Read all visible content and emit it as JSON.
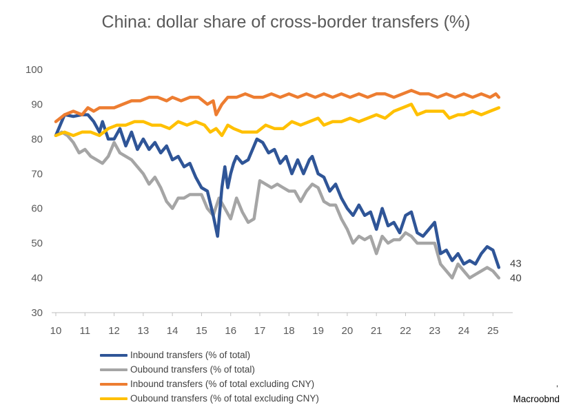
{
  "chart_data": {
    "type": "line",
    "title": "China: dollar share of cross-border transfers (%)",
    "xlabel": "",
    "ylabel": "",
    "xlim": [
      2010,
      2025.3
    ],
    "ylim": [
      30,
      100
    ],
    "yticks": [
      100,
      90,
      80,
      70,
      60,
      50,
      40,
      30
    ],
    "xtick_labels": [
      "10",
      "11",
      "12",
      "13",
      "14",
      "15",
      "16",
      "17",
      "18",
      "19",
      "20",
      "21",
      "22",
      "23",
      "24",
      "25"
    ],
    "end_labels": [
      {
        "series": "Inbound transfers (% of total)",
        "text": "43",
        "value": 43
      },
      {
        "series": "Oubound transfers (% of total)",
        "text": "40",
        "value": 40
      }
    ],
    "series": [
      {
        "name": "Inbound transfers (% of total)",
        "color": "#2F5597",
        "points": [
          [
            2010.0,
            81
          ],
          [
            2010.3,
            87
          ],
          [
            2010.6,
            86.5
          ],
          [
            2010.9,
            87
          ],
          [
            2011.1,
            87
          ],
          [
            2011.3,
            85
          ],
          [
            2011.5,
            82
          ],
          [
            2011.6,
            85
          ],
          [
            2011.8,
            80
          ],
          [
            2012.0,
            80
          ],
          [
            2012.2,
            83
          ],
          [
            2012.4,
            78
          ],
          [
            2012.6,
            82
          ],
          [
            2012.8,
            77
          ],
          [
            2013.0,
            80
          ],
          [
            2013.2,
            77
          ],
          [
            2013.4,
            79
          ],
          [
            2013.6,
            76
          ],
          [
            2013.8,
            78
          ],
          [
            2014.0,
            74
          ],
          [
            2014.2,
            75
          ],
          [
            2014.4,
            72
          ],
          [
            2014.6,
            73
          ],
          [
            2014.8,
            69
          ],
          [
            2015.0,
            66
          ],
          [
            2015.2,
            65
          ],
          [
            2015.4,
            58
          ],
          [
            2015.55,
            52
          ],
          [
            2015.7,
            66
          ],
          [
            2015.8,
            72
          ],
          [
            2015.9,
            66
          ],
          [
            2016.0,
            70
          ],
          [
            2016.1,
            73
          ],
          [
            2016.2,
            75
          ],
          [
            2016.4,
            73
          ],
          [
            2016.6,
            74
          ],
          [
            2016.8,
            78
          ],
          [
            2016.9,
            80
          ],
          [
            2017.1,
            79
          ],
          [
            2017.3,
            76
          ],
          [
            2017.5,
            77
          ],
          [
            2017.7,
            73
          ],
          [
            2017.9,
            75
          ],
          [
            2018.1,
            70
          ],
          [
            2018.3,
            74
          ],
          [
            2018.5,
            70
          ],
          [
            2018.7,
            74
          ],
          [
            2018.8,
            75
          ],
          [
            2019.0,
            70
          ],
          [
            2019.2,
            69
          ],
          [
            2019.4,
            65
          ],
          [
            2019.6,
            67
          ],
          [
            2019.8,
            63
          ],
          [
            2020.0,
            60
          ],
          [
            2020.2,
            58
          ],
          [
            2020.4,
            61
          ],
          [
            2020.6,
            58
          ],
          [
            2020.8,
            59
          ],
          [
            2021.0,
            54
          ],
          [
            2021.2,
            60
          ],
          [
            2021.4,
            55
          ],
          [
            2021.6,
            56
          ],
          [
            2021.8,
            53
          ],
          [
            2022.0,
            58
          ],
          [
            2022.2,
            59
          ],
          [
            2022.4,
            53
          ],
          [
            2022.6,
            52
          ],
          [
            2022.8,
            54
          ],
          [
            2023.0,
            56
          ],
          [
            2023.2,
            47
          ],
          [
            2023.4,
            48
          ],
          [
            2023.6,
            45
          ],
          [
            2023.8,
            47
          ],
          [
            2024.0,
            44
          ],
          [
            2024.2,
            45
          ],
          [
            2024.4,
            44
          ],
          [
            2024.6,
            47
          ],
          [
            2024.8,
            49
          ],
          [
            2025.0,
            48
          ],
          [
            2025.2,
            43
          ]
        ]
      },
      {
        "name": "Oubound transfers (% of total)",
        "color": "#A5A5A5",
        "points": [
          [
            2010.0,
            81
          ],
          [
            2010.2,
            82
          ],
          [
            2010.4,
            81
          ],
          [
            2010.6,
            79
          ],
          [
            2010.8,
            76
          ],
          [
            2011.0,
            77
          ],
          [
            2011.2,
            75
          ],
          [
            2011.4,
            74
          ],
          [
            2011.6,
            73
          ],
          [
            2011.8,
            75
          ],
          [
            2012.0,
            79
          ],
          [
            2012.2,
            76
          ],
          [
            2012.4,
            75
          ],
          [
            2012.6,
            74
          ],
          [
            2012.8,
            72
          ],
          [
            2013.0,
            70
          ],
          [
            2013.2,
            67
          ],
          [
            2013.4,
            69
          ],
          [
            2013.6,
            66
          ],
          [
            2013.8,
            62
          ],
          [
            2014.0,
            60
          ],
          [
            2014.2,
            63
          ],
          [
            2014.4,
            63
          ],
          [
            2014.6,
            64
          ],
          [
            2014.8,
            64
          ],
          [
            2015.0,
            64
          ],
          [
            2015.2,
            60
          ],
          [
            2015.4,
            58
          ],
          [
            2015.6,
            63
          ],
          [
            2015.8,
            60
          ],
          [
            2016.0,
            57
          ],
          [
            2016.2,
            63
          ],
          [
            2016.4,
            59
          ],
          [
            2016.6,
            56
          ],
          [
            2016.8,
            57
          ],
          [
            2017.0,
            68
          ],
          [
            2017.2,
            67
          ],
          [
            2017.4,
            66
          ],
          [
            2017.6,
            67
          ],
          [
            2017.8,
            66
          ],
          [
            2018.0,
            65
          ],
          [
            2018.2,
            65
          ],
          [
            2018.4,
            62
          ],
          [
            2018.6,
            65
          ],
          [
            2018.8,
            67
          ],
          [
            2019.0,
            66
          ],
          [
            2019.2,
            62
          ],
          [
            2019.4,
            61
          ],
          [
            2019.6,
            61
          ],
          [
            2019.8,
            57
          ],
          [
            2020.0,
            54
          ],
          [
            2020.2,
            50
          ],
          [
            2020.4,
            52
          ],
          [
            2020.6,
            51
          ],
          [
            2020.8,
            52
          ],
          [
            2021.0,
            47
          ],
          [
            2021.2,
            52
          ],
          [
            2021.4,
            50
          ],
          [
            2021.6,
            51
          ],
          [
            2021.8,
            51
          ],
          [
            2022.0,
            53
          ],
          [
            2022.2,
            52
          ],
          [
            2022.4,
            50
          ],
          [
            2022.6,
            50
          ],
          [
            2022.8,
            50
          ],
          [
            2023.0,
            50
          ],
          [
            2023.2,
            44
          ],
          [
            2023.4,
            42
          ],
          [
            2023.6,
            40
          ],
          [
            2023.8,
            44
          ],
          [
            2024.0,
            42
          ],
          [
            2024.2,
            40
          ],
          [
            2024.4,
            41
          ],
          [
            2024.6,
            42
          ],
          [
            2024.8,
            43
          ],
          [
            2025.0,
            42
          ],
          [
            2025.2,
            40
          ]
        ]
      },
      {
        "name": "Inbound transfers (% of total excluding CNY)",
        "color": "#ED7D31",
        "points": [
          [
            2010.0,
            85
          ],
          [
            2010.3,
            87
          ],
          [
            2010.6,
            88
          ],
          [
            2010.9,
            87
          ],
          [
            2011.1,
            89
          ],
          [
            2011.3,
            88
          ],
          [
            2011.5,
            89
          ],
          [
            2011.8,
            89
          ],
          [
            2012.0,
            89
          ],
          [
            2012.3,
            90
          ],
          [
            2012.6,
            91
          ],
          [
            2012.9,
            91
          ],
          [
            2013.2,
            92
          ],
          [
            2013.5,
            92
          ],
          [
            2013.8,
            91
          ],
          [
            2014.0,
            92
          ],
          [
            2014.3,
            91
          ],
          [
            2014.6,
            92
          ],
          [
            2014.9,
            92
          ],
          [
            2015.2,
            90
          ],
          [
            2015.4,
            91
          ],
          [
            2015.5,
            87
          ],
          [
            2015.7,
            90
          ],
          [
            2015.9,
            92
          ],
          [
            2016.2,
            92
          ],
          [
            2016.5,
            93
          ],
          [
            2016.8,
            92
          ],
          [
            2017.1,
            92
          ],
          [
            2017.4,
            93
          ],
          [
            2017.7,
            92
          ],
          [
            2018.0,
            93
          ],
          [
            2018.3,
            92
          ],
          [
            2018.6,
            93
          ],
          [
            2018.9,
            92
          ],
          [
            2019.2,
            93
          ],
          [
            2019.5,
            92
          ],
          [
            2019.8,
            93
          ],
          [
            2020.1,
            92
          ],
          [
            2020.4,
            93
          ],
          [
            2020.7,
            92
          ],
          [
            2021.0,
            93
          ],
          [
            2021.3,
            93
          ],
          [
            2021.6,
            92
          ],
          [
            2021.9,
            93
          ],
          [
            2022.2,
            94
          ],
          [
            2022.5,
            93
          ],
          [
            2022.8,
            93
          ],
          [
            2023.1,
            92
          ],
          [
            2023.4,
            93
          ],
          [
            2023.7,
            92
          ],
          [
            2024.0,
            93
          ],
          [
            2024.3,
            92
          ],
          [
            2024.6,
            93
          ],
          [
            2024.9,
            92
          ],
          [
            2025.1,
            93
          ],
          [
            2025.2,
            92
          ]
        ]
      },
      {
        "name": "Oubound transfers (% of total excluding CNY)",
        "color": "#FFC000",
        "points": [
          [
            2010.0,
            81
          ],
          [
            2010.3,
            82
          ],
          [
            2010.6,
            81
          ],
          [
            2010.9,
            82
          ],
          [
            2011.2,
            82
          ],
          [
            2011.5,
            81
          ],
          [
            2011.8,
            83
          ],
          [
            2012.1,
            84
          ],
          [
            2012.4,
            84
          ],
          [
            2012.7,
            85
          ],
          [
            2013.0,
            85
          ],
          [
            2013.3,
            84
          ],
          [
            2013.6,
            84
          ],
          [
            2013.9,
            83
          ],
          [
            2014.2,
            85
          ],
          [
            2014.5,
            84
          ],
          [
            2014.8,
            85
          ],
          [
            2015.1,
            84
          ],
          [
            2015.3,
            82
          ],
          [
            2015.5,
            83
          ],
          [
            2015.7,
            81
          ],
          [
            2015.9,
            84
          ],
          [
            2016.1,
            83
          ],
          [
            2016.4,
            82
          ],
          [
            2016.7,
            82
          ],
          [
            2016.9,
            82
          ],
          [
            2017.2,
            84
          ],
          [
            2017.5,
            83
          ],
          [
            2017.8,
            83
          ],
          [
            2018.1,
            85
          ],
          [
            2018.4,
            84
          ],
          [
            2018.7,
            85
          ],
          [
            2019.0,
            86
          ],
          [
            2019.2,
            84
          ],
          [
            2019.5,
            85
          ],
          [
            2019.8,
            85
          ],
          [
            2020.1,
            86
          ],
          [
            2020.4,
            85
          ],
          [
            2020.7,
            86
          ],
          [
            2021.0,
            87
          ],
          [
            2021.3,
            86
          ],
          [
            2021.6,
            88
          ],
          [
            2021.9,
            89
          ],
          [
            2022.2,
            90
          ],
          [
            2022.4,
            87
          ],
          [
            2022.7,
            88
          ],
          [
            2023.0,
            88
          ],
          [
            2023.3,
            88
          ],
          [
            2023.5,
            86
          ],
          [
            2023.8,
            87
          ],
          [
            2024.0,
            87
          ],
          [
            2024.3,
            88
          ],
          [
            2024.6,
            87
          ],
          [
            2024.9,
            88
          ],
          [
            2025.2,
            89
          ]
        ]
      }
    ],
    "legend_position": "bottom-left"
  },
  "source": "Macroobnd"
}
